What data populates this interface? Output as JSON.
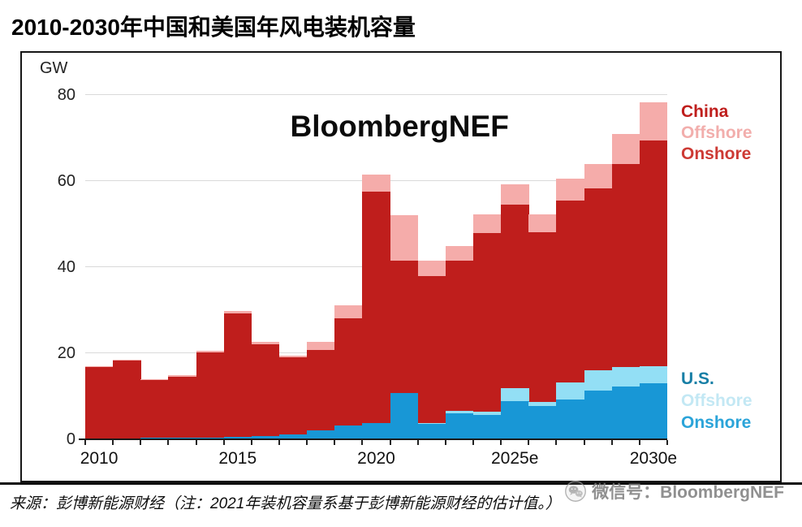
{
  "page_title": "2010-2030年中国和美国年风电装机容量",
  "watermark_text": "BloombergNEF",
  "axis": {
    "unit_label": "GW",
    "y_ticks": [
      {
        "label": "80",
        "gw": 80
      },
      {
        "label": "60",
        "gw": 60
      },
      {
        "label": "40",
        "gw": 40
      },
      {
        "label": "20",
        "gw": 20
      },
      {
        "label": "0",
        "gw": 0
      }
    ],
    "x_labels": [
      {
        "label": "2010",
        "index": 0
      },
      {
        "label": "2015",
        "index": 5
      },
      {
        "label": "2020",
        "index": 10
      },
      {
        "label": "2025e",
        "index": 15
      },
      {
        "label": "2030e",
        "index": 20
      }
    ]
  },
  "legend": {
    "china": {
      "title": "China",
      "offshore": "Offshore",
      "onshore": "Onshore",
      "title_color": "#bf1e1c",
      "offshore_color": "#f2aeac",
      "onshore_color": "#cd3a34"
    },
    "us": {
      "title": "U.S.",
      "offshore": "Offshore",
      "onshore": "Onshore",
      "title_color": "#187fa6",
      "offshore_color": "#c3e8f4",
      "onshore_color": "#2ba4d9"
    }
  },
  "colors": {
    "china_onshore": "#bf1e1c",
    "china_offshore": "#f5acaa",
    "us_onshore": "#1897d6",
    "us_offshore": "#93dff5",
    "gridline": "#d9d9d9",
    "axis": "#1a1a1a"
  },
  "source_note": "来源：彭博新能源财经（注：2021年装机容量系基于彭博新能源财经的估计值。）",
  "wechat_badge_label": "微信号：BloombergNEF",
  "chart_data": {
    "type": "bar",
    "title": "2010-2030年中国和美国年风电装机容量",
    "ylabel": "GW",
    "ylim": [
      0,
      80
    ],
    "y_gridlines": [
      20,
      40,
      60,
      80
    ],
    "grid": true,
    "legend_position": "right",
    "layout": "China bar (onshore+offshore stacked) drawn behind; U.S. bar (onshore+offshore stacked) drawn in front of it from the same baseline",
    "categories": [
      "2010",
      "2011",
      "2012",
      "2013",
      "2014",
      "2015",
      "2016",
      "2017",
      "2018",
      "2019",
      "2020",
      "2021",
      "2022",
      "2023",
      "2024",
      "2025",
      "2026",
      "2027",
      "2028",
      "2029",
      "2030"
    ],
    "series": [
      {
        "name": "China Onshore",
        "color": "#bf1e1c",
        "values": [
          16.8,
          18.4,
          13.8,
          14.5,
          20.2,
          29.3,
          22.0,
          19.0,
          20.8,
          28.2,
          57.5,
          41.5,
          38.0,
          41.5,
          48.0,
          54.5,
          48.2,
          55.5,
          58.3,
          64.0,
          69.5
        ]
      },
      {
        "name": "China Offshore",
        "color": "#f5acaa",
        "values": [
          0.1,
          0.1,
          0.2,
          0.4,
          0.4,
          0.5,
          0.6,
          0.5,
          1.9,
          2.9,
          4.0,
          10.5,
          3.5,
          3.4,
          4.3,
          4.8,
          4.1,
          5.1,
          5.6,
          6.9,
          8.8
        ]
      },
      {
        "name": "U.S. Onshore",
        "color": "#1897d6",
        "values": [
          0.2,
          0.2,
          0.3,
          0.3,
          0.4,
          0.5,
          0.7,
          1.2,
          2.0,
          3.3,
          3.7,
          10.7,
          3.6,
          6.0,
          5.6,
          8.8,
          7.8,
          9.2,
          11.3,
          12.2,
          13.0
        ]
      },
      {
        "name": "U.S. Offshore",
        "color": "#93dff5",
        "values": [
          0,
          0,
          0,
          0,
          0,
          0,
          0,
          0,
          0,
          0,
          0,
          0,
          0.1,
          0.7,
          0.8,
          3.1,
          0.9,
          4.1,
          4.7,
          4.6,
          4.0
        ]
      }
    ]
  }
}
